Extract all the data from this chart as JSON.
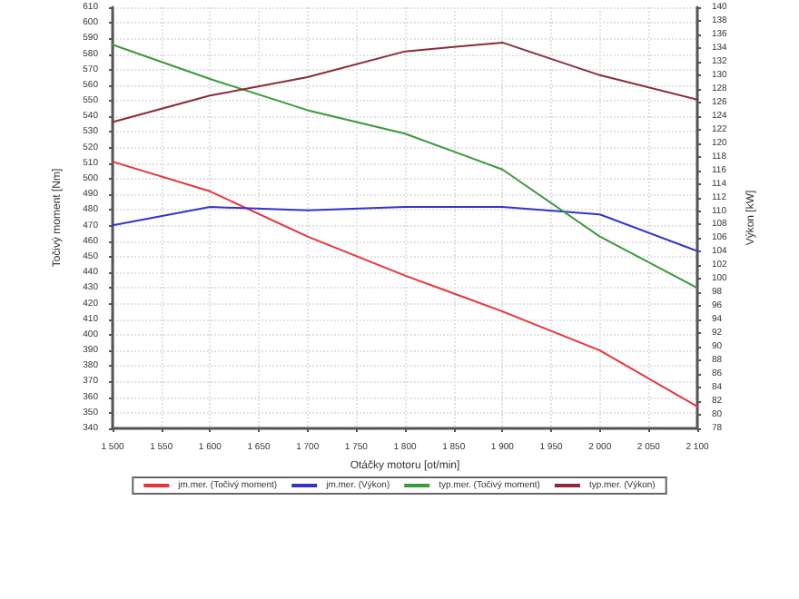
{
  "chart_data": {
    "type": "line",
    "xlabel": "Otáčky motoru [ot/min]",
    "ylabel": "Točivý moment [Nm]",
    "y2label": "Výkon [kW]",
    "x": [
      1500,
      1600,
      1700,
      1800,
      1900,
      2000,
      2100
    ],
    "series": [
      {
        "name": "jm.mer. (Točivý moment)",
        "color": "#e8343a",
        "values": [
          511,
          492,
          463,
          438,
          415,
          390,
          354
        ]
      },
      {
        "name": "jm.mer. (Výkon)",
        "color": "#3333cc",
        "axis": "y2",
        "values": [
          107.9,
          110.6,
          110.1,
          110.6,
          110.6,
          109.5,
          104.1
        ]
      },
      {
        "name": "typ.mer. (Točivý moment)",
        "color": "#3a9a3a",
        "values": [
          586,
          564,
          544,
          529,
          506,
          463,
          430
        ]
      },
      {
        "name": "typ.mer. (Výkon)",
        "color": "#8b2a3a",
        "axis": "y2",
        "values": [
          123.1,
          127,
          129.7,
          133.5,
          134.8,
          130,
          126.4
        ]
      }
    ],
    "xlim": [
      1500,
      2100
    ],
    "xticks": [
      {
        "value": 1500,
        "label": "1 500"
      },
      {
        "value": 1550,
        "label": "1 550"
      },
      {
        "value": 1600,
        "label": "1 600"
      },
      {
        "value": 1650,
        "label": "1 650"
      },
      {
        "value": 1700,
        "label": "1 700"
      },
      {
        "value": 1750,
        "label": "1 750"
      },
      {
        "value": 1800,
        "label": "1 800"
      },
      {
        "value": 1850,
        "label": "1 850"
      },
      {
        "value": 1900,
        "label": "1 900"
      },
      {
        "value": 1950,
        "label": "1 950"
      },
      {
        "value": 2000,
        "label": "2 000"
      },
      {
        "value": 2050,
        "label": "2 050"
      },
      {
        "value": 2100,
        "label": "2 100"
      }
    ],
    "ylim": [
      340,
      610
    ],
    "yticks": [
      340,
      350,
      360,
      370,
      380,
      390,
      400,
      410,
      420,
      430,
      440,
      450,
      460,
      470,
      480,
      490,
      500,
      510,
      520,
      530,
      540,
      550,
      560,
      570,
      580,
      590,
      600,
      610
    ],
    "y2lim": [
      78,
      140
    ],
    "y2ticks": [
      78,
      80,
      82,
      84,
      86,
      88,
      90,
      92,
      94,
      96,
      98,
      100,
      102,
      104,
      106,
      108,
      110,
      112,
      114,
      116,
      118,
      120,
      122,
      124,
      126,
      128,
      130,
      132,
      134,
      136,
      138,
      140
    ],
    "grid": true,
    "legend": "bottom",
    "marker": "none",
    "line_style": "solid"
  }
}
